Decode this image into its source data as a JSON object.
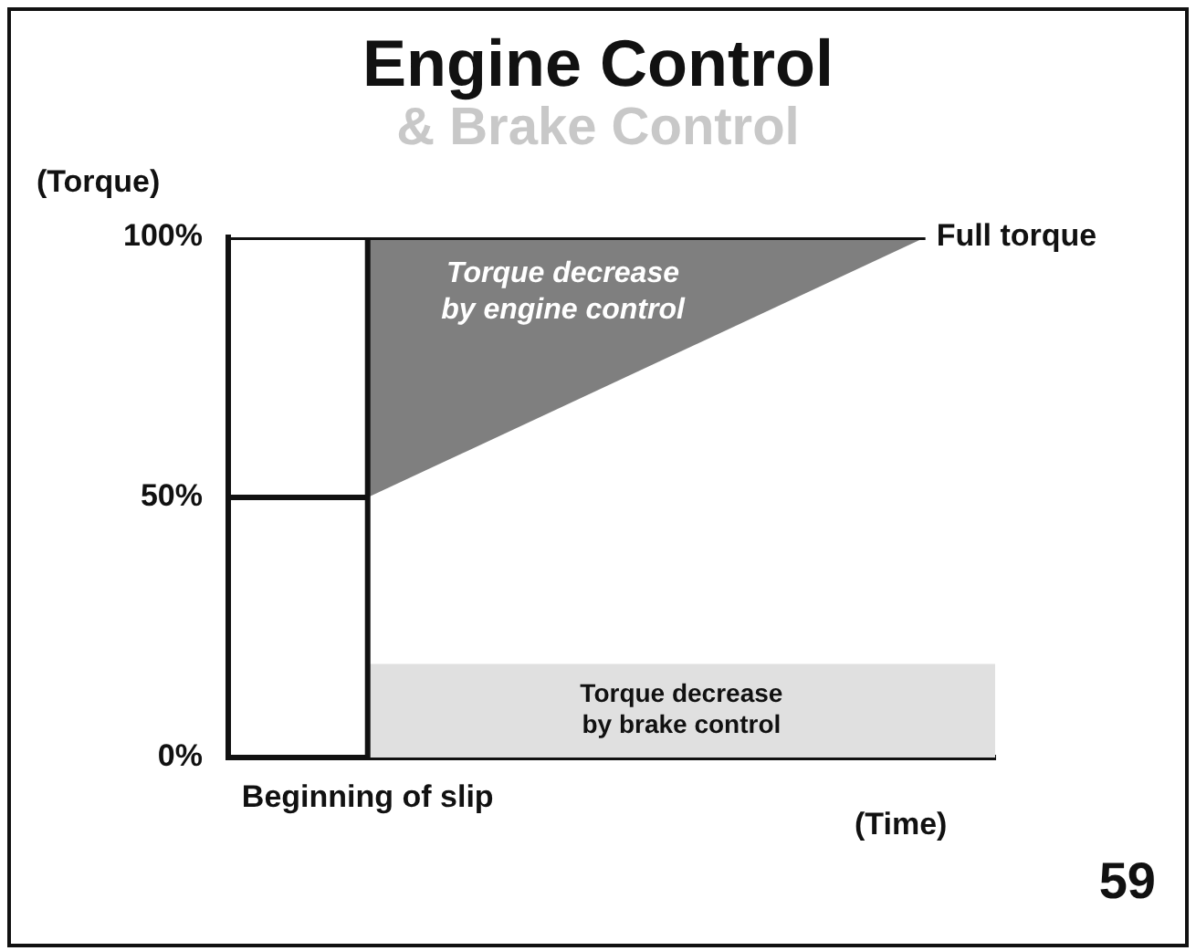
{
  "chart_data": {
    "type": "line",
    "title": "Engine Control",
    "subtitle": "& Brake Control",
    "ylabel": "(Torque)",
    "xlabel": "(Time)",
    "categories": [
      null,
      null,
      "Beginning of slip",
      null,
      null,
      null,
      null,
      null,
      null,
      null,
      null,
      null
    ],
    "series": [
      {
        "name": "Torque decrease by brake control",
        "type": "area",
        "color": "#e0e0e0",
        "values": [
          null,
          null,
          18,
          18,
          18,
          18,
          18,
          18,
          18,
          18,
          18,
          18
        ]
      },
      {
        "name": "Full torque",
        "type": "line",
        "color": "#111111",
        "values": [
          100,
          100,
          100,
          100,
          100,
          100,
          100,
          100,
          100,
          100,
          100,
          null
        ]
      },
      {
        "name": "Torque decrease by engine control",
        "type": "area",
        "color": "#7f7f7f",
        "values": [
          null,
          null,
          50,
          null,
          null,
          null,
          null,
          null,
          null,
          null,
          100,
          null
        ]
      },
      {
        "type": "line",
        "color": "#111111",
        "values": [
          50,
          50,
          50,
          null,
          null,
          null,
          null,
          null,
          null,
          null,
          null,
          null
        ]
      }
    ],
    "ylim": [
      0,
      100
    ],
    "yticks": [
      {
        "value": 0,
        "label": "0%"
      },
      {
        "value": 50,
        "label": "50%"
      },
      {
        "value": 100,
        "label": "100%"
      }
    ],
    "ref_lines": [
      {
        "axis": "x",
        "value": "Beginning of slip",
        "color": "#111111"
      }
    ],
    "annotations": [
      "59"
    ],
    "grid": false,
    "legend": false,
    "marker": "none",
    "line_style": "solid"
  }
}
